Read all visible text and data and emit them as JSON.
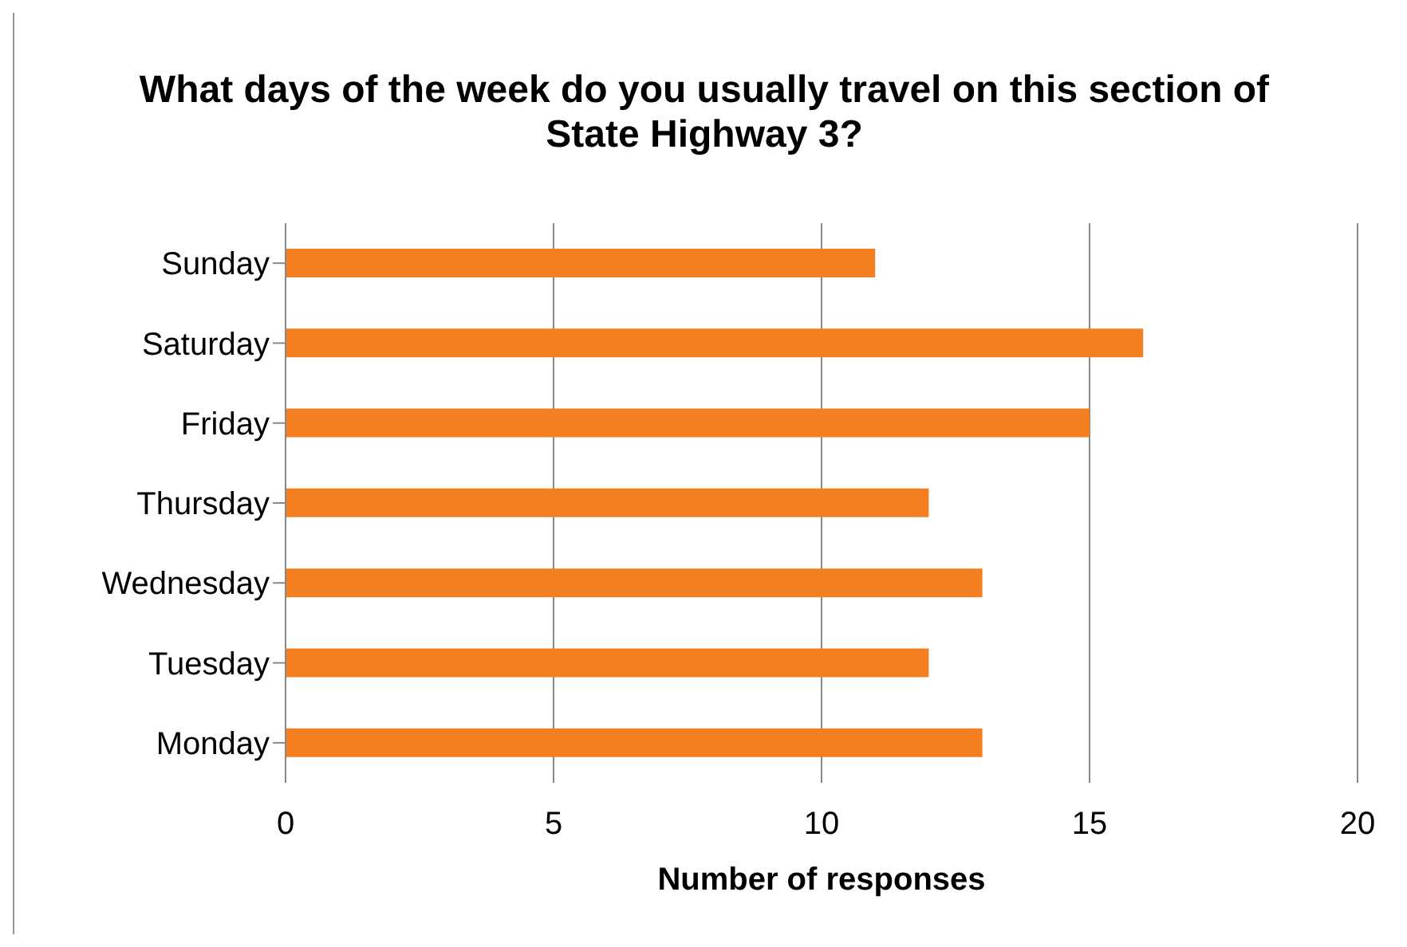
{
  "chart_data": {
    "type": "bar",
    "orientation": "horizontal",
    "title": "What days of the week do you usually travel on this section of State Highway 3?",
    "xlabel": "Number of responses",
    "categories": [
      "Sunday",
      "Saturday",
      "Friday",
      "Thursday",
      "Wednesday",
      "Tuesday",
      "Monday"
    ],
    "values": [
      11,
      16,
      15,
      12,
      13,
      12,
      13
    ],
    "color": "#f47f20",
    "xlim": [
      0,
      20
    ],
    "xticks": [
      0,
      5,
      10,
      15,
      20
    ],
    "grid": "x",
    "legend": false
  }
}
